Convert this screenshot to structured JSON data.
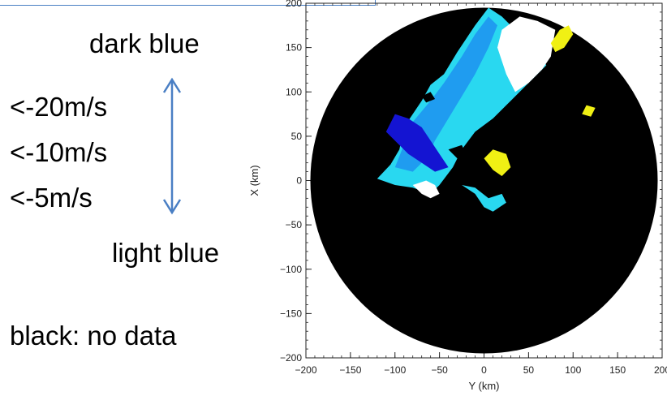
{
  "legend": {
    "top_label": "dark blue",
    "bottom_label": "light blue",
    "thresholds": [
      "<-20m/s",
      "<-10m/s",
      "<-5m/s"
    ],
    "no_data_note": "black: no data"
  },
  "colors": {
    "no_data": "#000000",
    "dark_blue": "#1414d2",
    "medium_blue": "#1f9cf0",
    "light_blue": "#29d8f0",
    "white": "#ffffff",
    "yellow": "#f0f014",
    "arrow": "#4a7fc4"
  },
  "chart_data": {
    "type": "scatter",
    "title": "",
    "xlabel": "Y (km)",
    "ylabel": "X (km)",
    "xlim": [
      -200,
      200
    ],
    "ylim": [
      -200,
      200
    ],
    "xticks": [
      -200,
      -150,
      -100,
      -50,
      0,
      50,
      100,
      150,
      200
    ],
    "yticks": [
      -200,
      -150,
      -100,
      -50,
      0,
      50,
      100,
      150,
      200
    ],
    "xtick_labels": [
      "−200",
      "−150",
      "−100",
      "−50",
      "0",
      "50",
      "100",
      "150",
      "200"
    ],
    "ytick_labels": [
      "−200",
      "−150",
      "−100",
      "−50",
      "0",
      "50",
      "100",
      "150",
      "200"
    ],
    "grid": false,
    "radar_range_km": 195,
    "regions": [
      {
        "category": "light_blue",
        "points": [
          [
            -120,
            2
          ],
          [
            -105,
            18
          ],
          [
            -95,
            35
          ],
          [
            -90,
            60
          ],
          [
            -70,
            90
          ],
          [
            -60,
            108
          ],
          [
            -45,
            120
          ],
          [
            -30,
            145
          ],
          [
            -10,
            175
          ],
          [
            5,
            195
          ],
          [
            20,
            185
          ],
          [
            40,
            165
          ],
          [
            60,
            150
          ],
          [
            70,
            130
          ],
          [
            50,
            110
          ],
          [
            30,
            90
          ],
          [
            10,
            70
          ],
          [
            -10,
            55
          ],
          [
            -25,
            35
          ],
          [
            -35,
            15
          ],
          [
            -50,
            -5
          ],
          [
            -60,
            -15
          ],
          [
            -80,
            -8
          ],
          [
            -100,
            -5
          ]
        ]
      },
      {
        "category": "light_blue",
        "points": [
          [
            -25,
            -5
          ],
          [
            -10,
            -15
          ],
          [
            0,
            -30
          ],
          [
            10,
            -35
          ],
          [
            25,
            -25
          ],
          [
            20,
            -15
          ],
          [
            5,
            -20
          ],
          [
            -10,
            -8
          ]
        ]
      },
      {
        "category": "medium_blue",
        "points": [
          [
            -100,
            15
          ],
          [
            -90,
            40
          ],
          [
            -85,
            60
          ],
          [
            -60,
            90
          ],
          [
            -45,
            110
          ],
          [
            -25,
            140
          ],
          [
            -10,
            165
          ],
          [
            5,
            185
          ],
          [
            15,
            175
          ],
          [
            5,
            150
          ],
          [
            -10,
            120
          ],
          [
            -25,
            95
          ],
          [
            -40,
            70
          ],
          [
            -55,
            45
          ],
          [
            -65,
            25
          ],
          [
            -80,
            10
          ]
        ]
      },
      {
        "category": "dark_blue",
        "points": [
          [
            -110,
            55
          ],
          [
            -100,
            75
          ],
          [
            -85,
            70
          ],
          [
            -70,
            60
          ],
          [
            -60,
            45
          ],
          [
            -50,
            30
          ],
          [
            -40,
            15
          ],
          [
            -55,
            10
          ],
          [
            -70,
            20
          ],
          [
            -85,
            30
          ],
          [
            -95,
            40
          ]
        ]
      },
      {
        "category": "white",
        "points": [
          [
            20,
            170
          ],
          [
            40,
            185
          ],
          [
            60,
            180
          ],
          [
            80,
            170
          ],
          [
            75,
            140
          ],
          [
            65,
            125
          ],
          [
            50,
            110
          ],
          [
            35,
            100
          ],
          [
            25,
            120
          ],
          [
            15,
            150
          ]
        ]
      },
      {
        "category": "white",
        "points": [
          [
            -80,
            -5
          ],
          [
            -70,
            -15
          ],
          [
            -60,
            -20
          ],
          [
            -50,
            -15
          ],
          [
            -55,
            -5
          ],
          [
            -65,
            0
          ]
        ]
      },
      {
        "category": "yellow",
        "points": [
          [
            75,
            155
          ],
          [
            85,
            170
          ],
          [
            95,
            175
          ],
          [
            100,
            165
          ],
          [
            90,
            150
          ],
          [
            80,
            145
          ]
        ]
      },
      {
        "category": "yellow",
        "points": [
          [
            0,
            25
          ],
          [
            10,
            35
          ],
          [
            25,
            30
          ],
          [
            30,
            15
          ],
          [
            20,
            5
          ],
          [
            10,
            12
          ]
        ]
      },
      {
        "category": "yellow",
        "points": [
          [
            110,
            75
          ],
          [
            115,
            85
          ],
          [
            125,
            82
          ],
          [
            120,
            72
          ]
        ]
      },
      {
        "category": "no_data",
        "points": [
          [
            -40,
            35
          ],
          [
            -25,
            40
          ],
          [
            -20,
            30
          ],
          [
            -30,
            25
          ]
        ]
      },
      {
        "category": "no_data",
        "points": [
          [
            -70,
            95
          ],
          [
            -60,
            100
          ],
          [
            -55,
            92
          ],
          [
            -65,
            88
          ]
        ]
      }
    ]
  }
}
